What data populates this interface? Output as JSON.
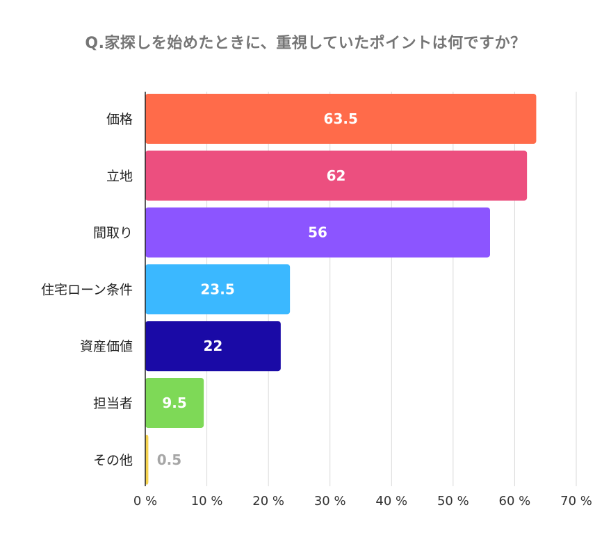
{
  "chart_data": {
    "type": "bar",
    "orientation": "horizontal",
    "title": "Q.家探しを始めたときに、重視していたポイントは何ですか？",
    "categories": [
      "価格",
      "立地",
      "間取り",
      "住宅ローン条件",
      "資産価値",
      "担当者",
      "その他"
    ],
    "values": [
      63.5,
      62,
      56,
      23.5,
      22,
      9.5,
      0.5
    ],
    "value_labels": [
      "63.5",
      "62",
      "56",
      "23.5",
      "22",
      "9.5",
      "0.5"
    ],
    "bar_colors": [
      "#ff6b4a",
      "#ec4f7f",
      "#8c55ff",
      "#3bb8ff",
      "#1a0aa6",
      "#7ed957",
      "#f5d24e"
    ],
    "xlim": [
      0,
      70
    ],
    "xticks": [
      0,
      10,
      20,
      30,
      40,
      50,
      60,
      70
    ],
    "xtick_labels": [
      "0 %",
      "10 %",
      "20 %",
      "30 %",
      "40 %",
      "50 %",
      "60 %",
      "70 %"
    ],
    "grid": true,
    "label_color_inside": "#ffffff",
    "label_color_outside": "#a6a6a6",
    "grid_color": "#d9d9d9",
    "axis_color": "#222222"
  }
}
